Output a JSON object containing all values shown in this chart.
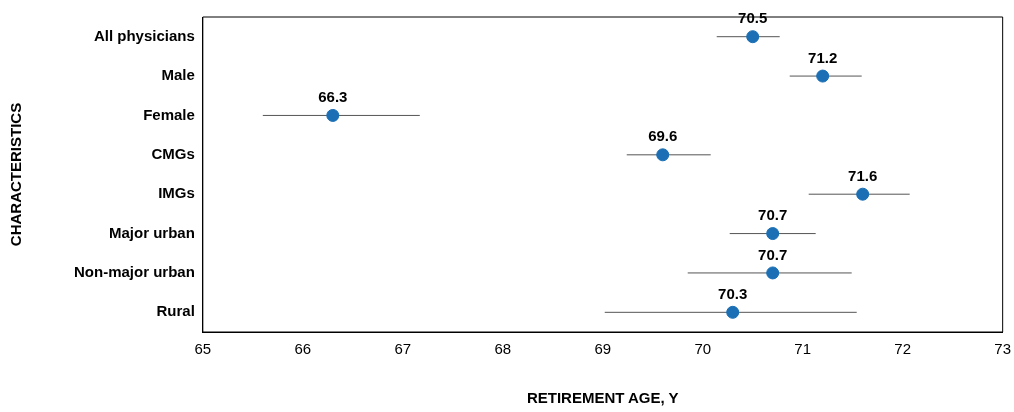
{
  "chart_data": {
    "type": "scatter",
    "orientation": "horizontal",
    "xlabel": "RETIREMENT AGE, Y",
    "ylabel": "CHARACTERISTICS",
    "categories": [
      "All physicians",
      "Male",
      "Female",
      "CMGs",
      "IMGs",
      "Major urban",
      "Non-major urban",
      "Rural"
    ],
    "values": [
      70.5,
      71.2,
      66.3,
      69.6,
      71.6,
      70.7,
      70.7,
      70.3
    ],
    "errors": [
      [
        70.14,
        70.77
      ],
      [
        70.87,
        71.59
      ],
      [
        65.6,
        67.17
      ],
      [
        69.24,
        70.08
      ],
      [
        71.06,
        72.07
      ],
      [
        70.27,
        71.13
      ],
      [
        69.85,
        71.49
      ],
      [
        69.02,
        71.54
      ]
    ],
    "color": "#1a6fb5",
    "marker": "circle",
    "data_labels": true,
    "grid": false,
    "legend": false,
    "xlim": [
      65,
      73
    ],
    "xticks": [
      65,
      66,
      67,
      68,
      69,
      70,
      71,
      72,
      73
    ]
  }
}
